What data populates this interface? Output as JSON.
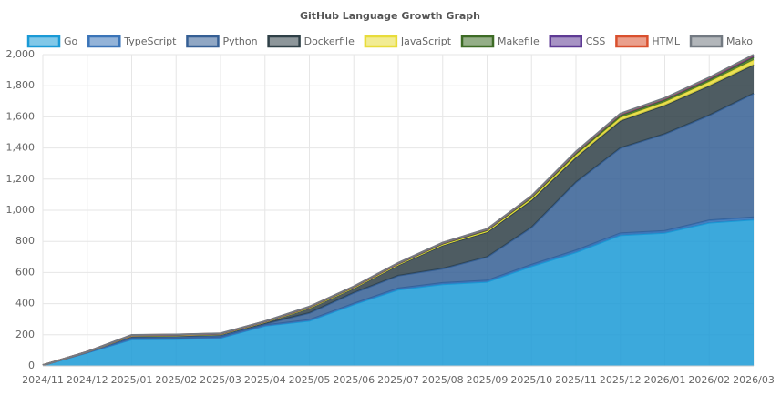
{
  "chart_data": {
    "type": "stacked-area",
    "title": "GitHub Language Growth Graph",
    "categories": [
      "2024/11",
      "2024/12",
      "2025/01",
      "2025/02",
      "2025/03",
      "2025/04",
      "2025/05",
      "2025/06",
      "2025/07",
      "2025/08",
      "2025/09",
      "2025/10",
      "2025/11",
      "2025/12",
      "2026/01",
      "2026/02",
      "2026/03"
    ],
    "ylim": [
      0,
      2000
    ],
    "yticks": [
      0,
      200,
      400,
      600,
      800,
      {
        "value": 1000,
        "label": "1,000"
      },
      {
        "value": 1200,
        "label": "1,200"
      },
      {
        "value": 1400,
        "label": "1,400"
      },
      {
        "value": 1600,
        "label": "1,600"
      },
      {
        "value": 1800,
        "label": "1,800"
      },
      {
        "value": 2000,
        "label": "2,000"
      }
    ],
    "grid": true,
    "legend": "top",
    "series": [
      {
        "name": "Go",
        "color": "#1a9ad6",
        "values": [
          5,
          85,
          170,
          172,
          180,
          258,
          290,
          395,
          490,
          525,
          540,
          640,
          730,
          840,
          855,
          920,
          940
        ]
      },
      {
        "name": "TypeScript",
        "color": "#3a74b8",
        "values": [
          0,
          1,
          3,
          3,
          3,
          3,
          5,
          5,
          8,
          8,
          8,
          10,
          12,
          12,
          12,
          15,
          15
        ]
      },
      {
        "name": "Python",
        "color": "#355f94",
        "values": [
          0,
          2,
          12,
          13,
          12,
          9,
          45,
          70,
          82,
          92,
          152,
          240,
          438,
          548,
          623,
          675,
          795
        ]
      },
      {
        "name": "Dockerfile",
        "color": "#2f4047",
        "values": [
          0,
          2,
          8,
          8,
          8,
          11,
          32,
          30,
          68,
          150,
          160,
          175,
          160,
          175,
          185,
          190,
          185
        ]
      },
      {
        "name": "JavaScript",
        "color": "#e8dc3a",
        "values": [
          0,
          0,
          1,
          1,
          1,
          1,
          2,
          3,
          4,
          5,
          6,
          10,
          15,
          20,
          20,
          25,
          30
        ]
      },
      {
        "name": "Makefile",
        "color": "#3d6b25",
        "values": [
          0,
          1,
          2,
          2,
          2,
          2,
          3,
          4,
          5,
          6,
          8,
          10,
          12,
          15,
          15,
          15,
          20
        ]
      },
      {
        "name": "CSS",
        "color": "#5e3a94",
        "values": [
          0,
          0,
          1,
          1,
          1,
          1,
          2,
          2,
          2,
          3,
          3,
          4,
          5,
          6,
          6,
          7,
          8
        ]
      },
      {
        "name": "HTML",
        "color": "#d9502e",
        "values": [
          0,
          0,
          1,
          1,
          1,
          1,
          1,
          1,
          2,
          2,
          2,
          2,
          3,
          3,
          3,
          4,
          4
        ]
      },
      {
        "name": "Mako",
        "color": "#737a82",
        "values": [
          0,
          0,
          1,
          1,
          1,
          1,
          1,
          1,
          1,
          1,
          1,
          1,
          2,
          2,
          2,
          2,
          2
        ]
      }
    ]
  }
}
